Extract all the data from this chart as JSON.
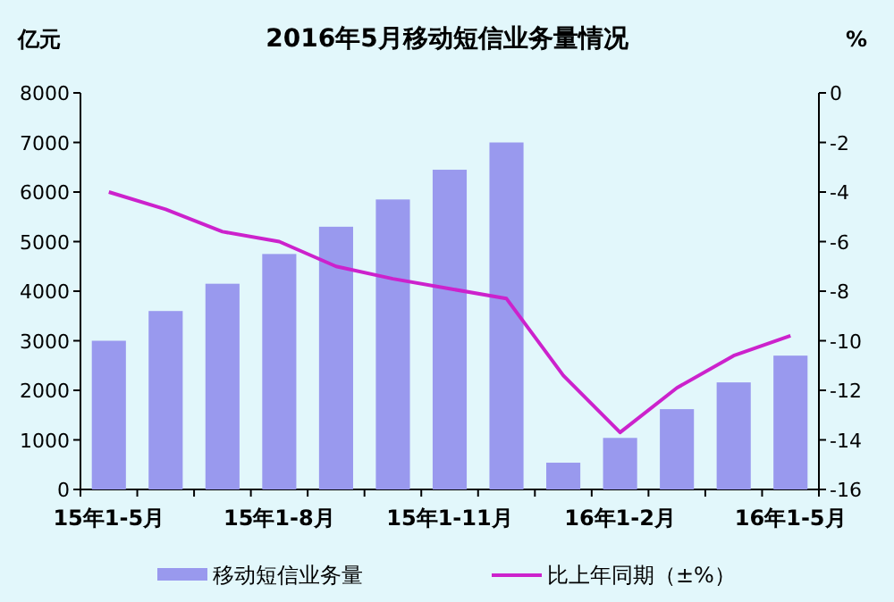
{
  "chart_data": {
    "type": "bar",
    "title": "2016年5月移动短信业务量情况",
    "ylabel": "亿元",
    "y2label": "%",
    "categories": [
      "15年1-5月",
      null,
      null,
      "15年1-8月",
      null,
      null,
      "15年1-11月",
      null,
      null,
      "16年1-2月",
      null,
      null,
      "16年1-5月"
    ],
    "series": [
      {
        "name": "移动短信业务量",
        "color": "#9999ee",
        "values": [
          3000,
          3600,
          4150,
          4750,
          5300,
          5850,
          6450,
          7000,
          540,
          1040,
          1620,
          2160,
          2700
        ]
      },
      {
        "name": "比上年同期（±%）",
        "type": "line",
        "axis": "y2",
        "color": "#cc22cc",
        "values": [
          -4.0,
          -4.7,
          -5.6,
          -6.0,
          -7.0,
          -7.5,
          -7.9,
          -8.3,
          -11.4,
          -13.7,
          -11.9,
          -10.6,
          -9.8
        ]
      }
    ],
    "ylim": [
      0,
      8000
    ],
    "yticks": [
      0,
      1000,
      2000,
      3000,
      4000,
      5000,
      6000,
      7000,
      8000
    ],
    "y2lim": [
      -16,
      0
    ],
    "y2ticks": [
      -16,
      -14,
      -12,
      -10,
      -8,
      -6,
      -4,
      -2,
      0
    ],
    "legend": "bottom",
    "grid": false,
    "marker": "none"
  }
}
